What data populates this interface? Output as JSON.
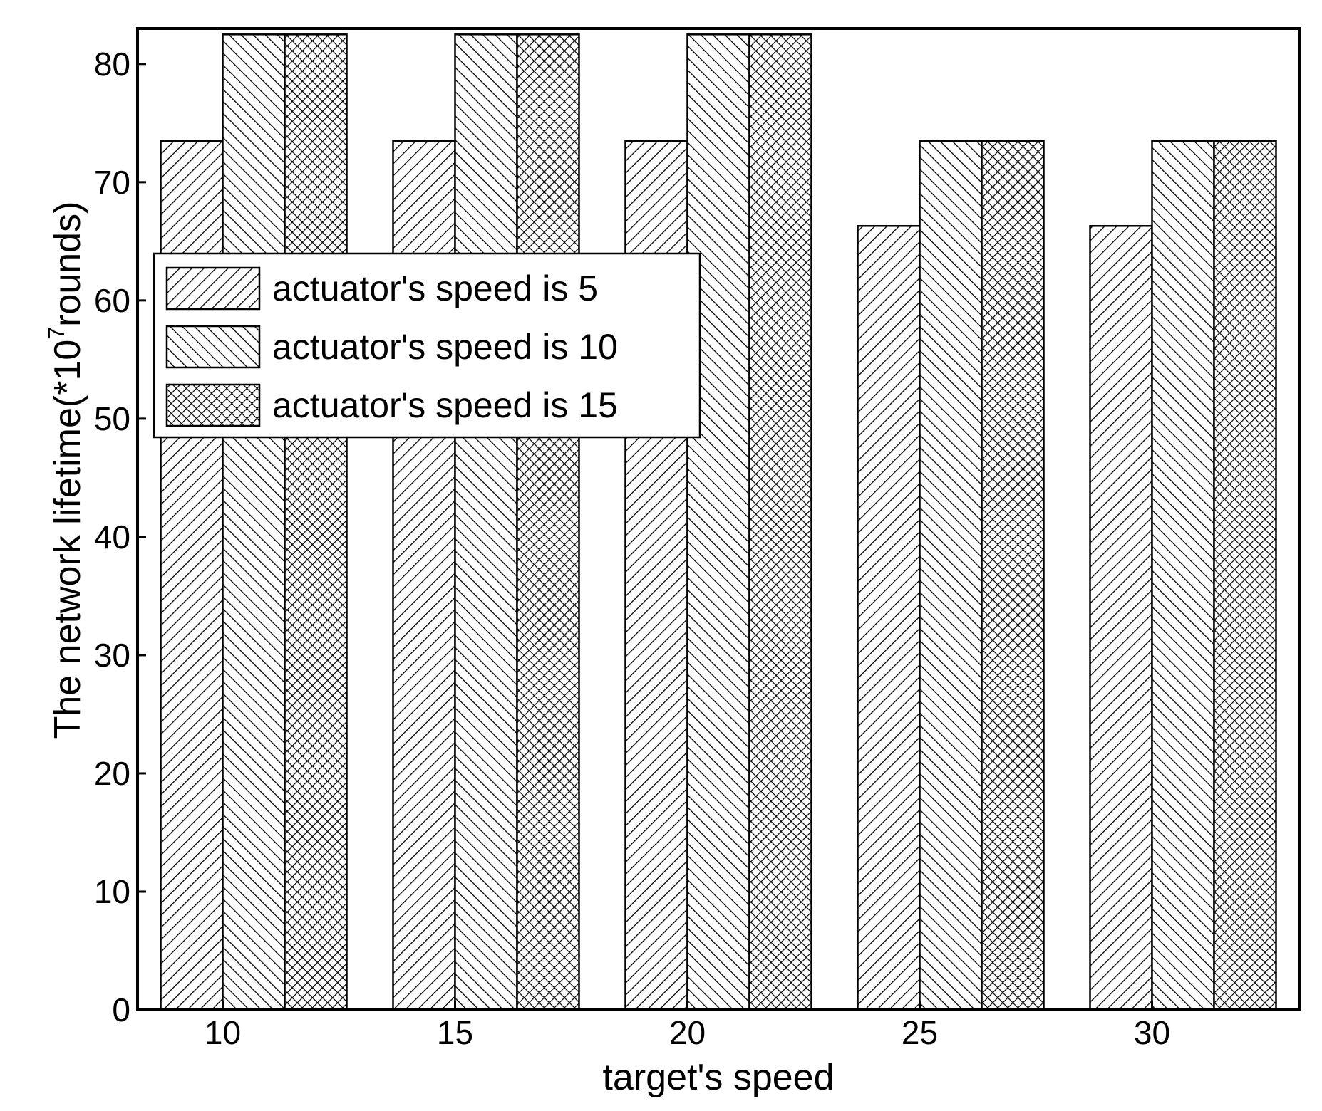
{
  "chart_data": {
    "type": "bar",
    "title": "",
    "xlabel": "target's speed",
    "ylabel": {
      "prefix": "The network lifetime(*10",
      "superscript": "7",
      "suffix": "rounds)"
    },
    "categories": [
      "10",
      "15",
      "20",
      "25",
      "30"
    ],
    "series": [
      {
        "name": "actuator's speed is 5",
        "values": [
          73.5,
          73.5,
          73.5,
          66.3,
          66.3
        ],
        "pattern": "forward-hatch"
      },
      {
        "name": "actuator's speed is 10",
        "values": [
          82.5,
          82.5,
          82.5,
          73.5,
          73.5
        ],
        "pattern": "back-hatch"
      },
      {
        "name": "actuator's speed is 15",
        "values": [
          82.5,
          82.5,
          82.5,
          73.5,
          73.5
        ],
        "pattern": "cross-hatch"
      }
    ],
    "ylim": [
      0,
      83
    ],
    "yticks": [
      0,
      10,
      20,
      30,
      40,
      50,
      60,
      70,
      80
    ],
    "grid": false,
    "legend_position": "upper-left",
    "colors": {
      "ink": "#000000",
      "background": "#ffffff"
    }
  }
}
